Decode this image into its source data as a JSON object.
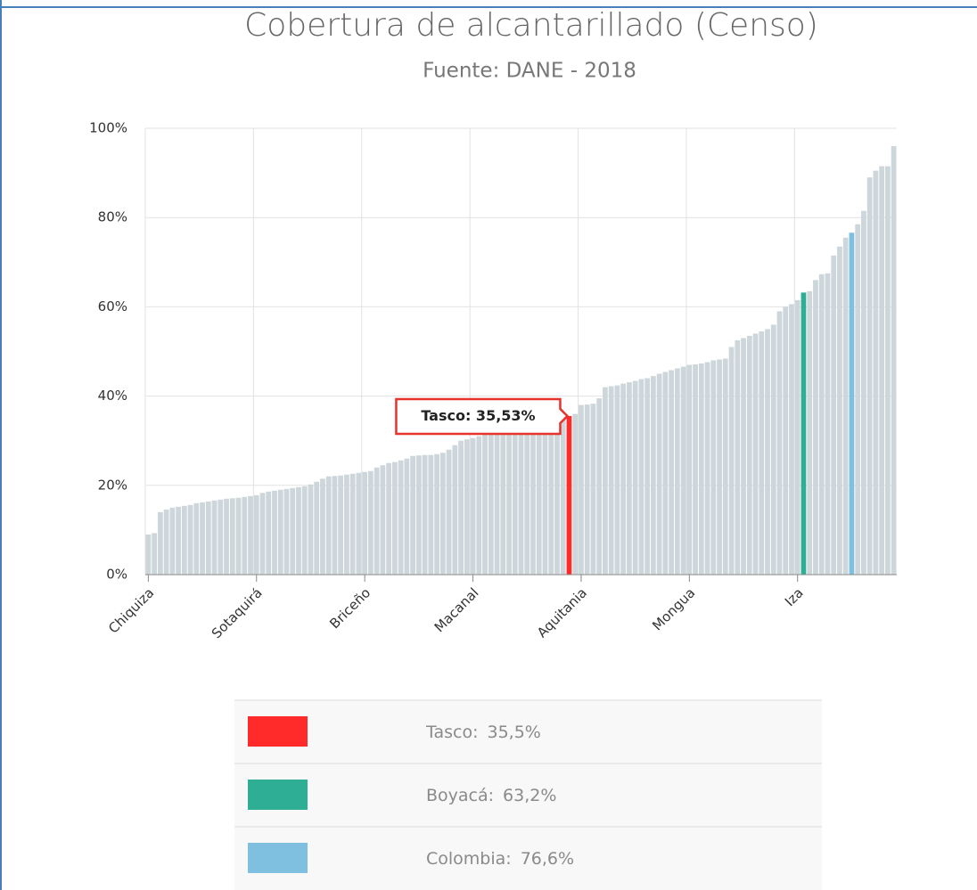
{
  "chart_data": {
    "type": "bar",
    "title": "Cobertura de alcantarillado (Censo)",
    "subtitle": "Fuente: DANE - 2018",
    "categories": [
      "Chiquiza",
      null,
      null,
      null,
      null,
      null,
      null,
      null,
      null,
      null,
      null,
      null,
      null,
      null,
      null,
      null,
      null,
      null,
      "Sotaquirá",
      null,
      null,
      null,
      null,
      null,
      null,
      null,
      null,
      null,
      null,
      null,
      null,
      null,
      null,
      null,
      null,
      null,
      "Briceño",
      null,
      null,
      null,
      null,
      null,
      null,
      null,
      null,
      null,
      null,
      null,
      null,
      null,
      null,
      null,
      null,
      null,
      "Macanal",
      null,
      null,
      null,
      null,
      null,
      null,
      null,
      null,
      null,
      null,
      null,
      null,
      null,
      null,
      null,
      null,
      null,
      "Aquitania",
      null,
      null,
      null,
      null,
      null,
      null,
      null,
      null,
      null,
      null,
      null,
      null,
      null,
      null,
      null,
      null,
      null,
      "Mongua",
      null,
      null,
      null,
      null,
      null,
      null,
      null,
      null,
      null,
      null,
      null,
      null,
      null,
      null,
      null,
      null,
      null,
      "Iza",
      null,
      null,
      null,
      null,
      null,
      null,
      null,
      null,
      null,
      null,
      null,
      null,
      null,
      null,
      null,
      null
    ],
    "values": [
      9,
      9.3,
      14,
      14.6,
      15,
      15.2,
      15.4,
      15.6,
      16,
      16.2,
      16.4,
      16.6,
      16.8,
      17,
      17.1,
      17.2,
      17.4,
      17.6,
      17.8,
      18.3,
      18.6,
      18.8,
      19,
      19.2,
      19.4,
      19.6,
      19.8,
      20.2,
      20.8,
      21.5,
      22,
      22.1,
      22.2,
      22.4,
      22.6,
      22.8,
      23,
      23.2,
      24,
      24.5,
      25,
      25.2,
      25.6,
      26,
      26.6,
      26.7,
      26.8,
      26.8,
      27,
      27.3,
      28,
      29,
      30,
      30.3,
      30.6,
      31,
      31.5,
      32,
      32.3,
      32.6,
      33,
      33.2,
      33.4,
      33.6,
      33.8,
      34,
      34.3,
      34.6,
      34.9,
      35.2,
      35.53,
      36,
      38,
      38.1,
      38.3,
      39.5,
      42,
      42.2,
      42.4,
      42.8,
      43.1,
      43.4,
      43.8,
      44,
      44.5,
      45,
      45.4,
      45.8,
      46.2,
      46.6,
      47,
      47.1,
      47.3,
      47.6,
      48,
      48.2,
      48.4,
      51,
      52.5,
      53,
      53.5,
      54,
      54.5,
      55,
      56,
      59,
      60,
      60.6,
      61.5,
      63.2,
      63.5,
      66,
      67.3,
      67.5,
      71.5,
      73.5,
      75.5,
      76.6,
      78.5,
      81.5,
      89,
      90.5,
      91.5,
      91.5,
      96
    ],
    "color": "#cdd6da",
    "highlights": [
      {
        "index": 70,
        "color": "#ff2a2a"
      },
      {
        "index": 109,
        "color": "#2fae96"
      },
      {
        "index": 117,
        "color": "#7fc0e0"
      }
    ],
    "tooltip": {
      "index": 70,
      "text": "Tasco: 35,53%"
    },
    "ylim": [
      0,
      100
    ],
    "yticks": [
      {
        "value": 0,
        "label": "0%"
      },
      {
        "value": 20,
        "label": "20%"
      },
      {
        "value": 40,
        "label": "40%"
      },
      {
        "value": 60,
        "label": "60%"
      },
      {
        "value": 80,
        "label": "80%"
      },
      {
        "value": 100,
        "label": "100%"
      }
    ],
    "grid": true,
    "legend": [
      {
        "label": "Tasco:",
        "value_label": "35,5%",
        "color": "#ff2a2a"
      },
      {
        "label": "Boyacá:",
        "value_label": "63,2%",
        "color": "#2fae96"
      },
      {
        "label": "Colombia:",
        "value_label": "76,6%",
        "color": "#7fc0e0"
      }
    ]
  }
}
